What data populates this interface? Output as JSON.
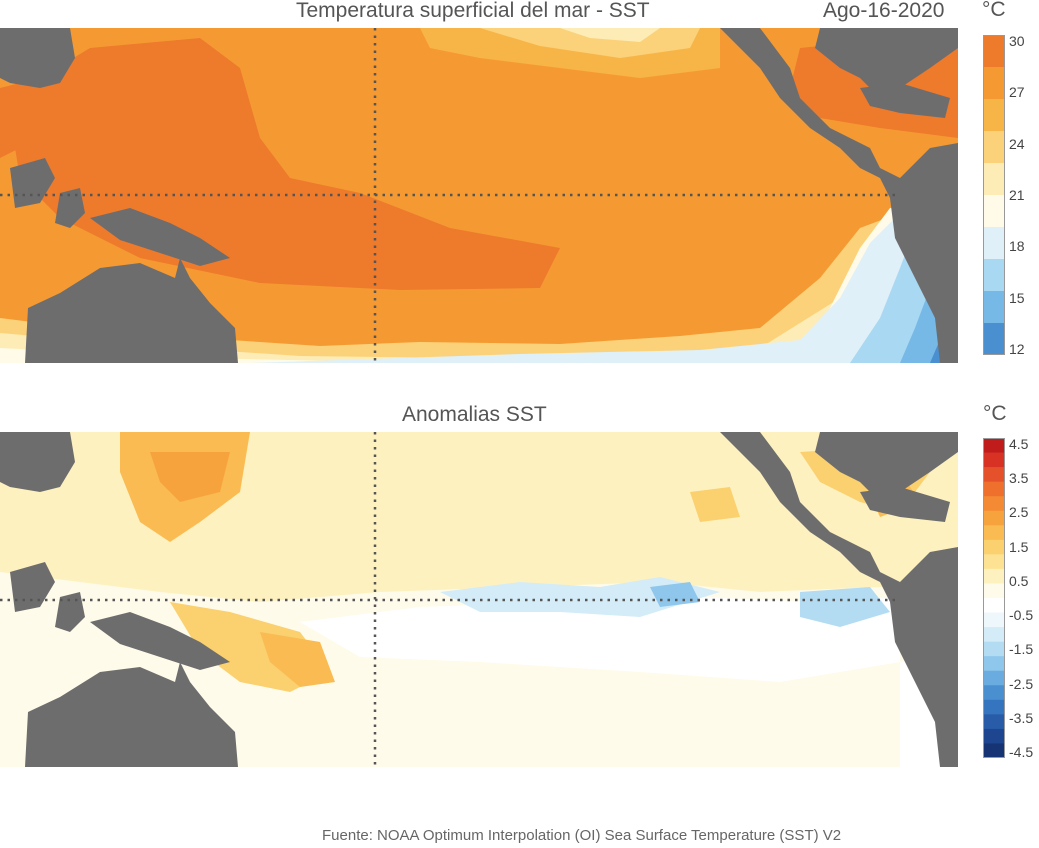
{
  "header": {
    "title": "Temperatura superficial del mar - SST",
    "date": "Ago-16-2020",
    "unit": "°C"
  },
  "anomaly": {
    "title": "Anomalias SST",
    "unit": "°C"
  },
  "sst_colorbar": {
    "ticks": [
      "30",
      "27",
      "24",
      "21",
      "18",
      "15",
      "12"
    ],
    "colors": [
      "#ee7a2c",
      "#f59a32",
      "#f8b547",
      "#fbd27a",
      "#fdecb6",
      "#fffbe8",
      "#dff0f8",
      "#a8d8f2",
      "#77b9e6",
      "#4a90d0"
    ]
  },
  "anomaly_colorbar": {
    "ticks": [
      "4.5",
      "3.5",
      "2.5",
      "1.5",
      "0.5",
      "-0.5",
      "-1.5",
      "-2.5",
      "-3.5",
      "-4.5"
    ],
    "colors": [
      "#c01c1c",
      "#d83224",
      "#e5512a",
      "#ef6f2c",
      "#f48a33",
      "#f7a33d",
      "#f9bb52",
      "#fbd06e",
      "#fde293",
      "#fef1c0",
      "#fffbea",
      "#ffffff",
      "#eef7fc",
      "#d4ecf8",
      "#b3dcf3",
      "#8ec6ec",
      "#6aacdf",
      "#4a8fd0",
      "#3574be",
      "#285ca8",
      "#1e4690",
      "#163374"
    ]
  },
  "footer": {
    "source": "Fuente: NOAA Optimum Interpolation (OI) Sea Surface Temperature (SST) V2"
  }
}
